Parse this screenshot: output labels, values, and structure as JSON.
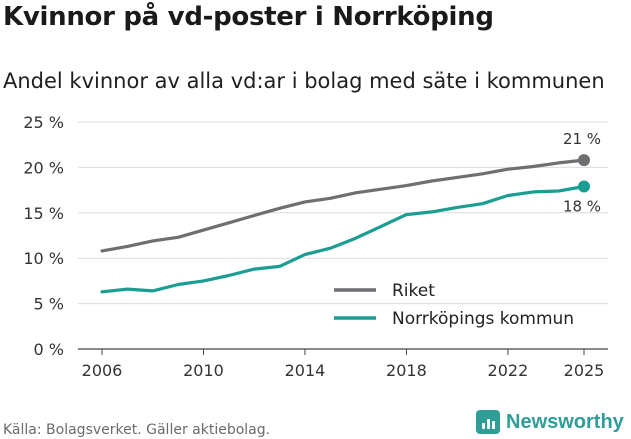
{
  "header": {
    "title": "Kvinnor på vd-poster i Norrköping",
    "subtitle": "Andel kvinnor av alla vd:ar i bolag med säte i kommunen"
  },
  "footer": {
    "source": "Källa: Bolagsverket. Gäller aktiebolag.",
    "brand": "Newsworthy"
  },
  "chart_data": {
    "type": "line",
    "title": "Kvinnor på vd-poster i Norrköping",
    "subtitle": "Andel kvinnor av alla vd:ar i bolag med säte i kommunen",
    "xlabel": "",
    "ylabel": "",
    "x": [
      2006,
      2007,
      2008,
      2009,
      2010,
      2011,
      2012,
      2013,
      2014,
      2015,
      2016,
      2017,
      2018,
      2019,
      2020,
      2021,
      2022,
      2023,
      2024,
      2025
    ],
    "x_ticks": [
      2006,
      2010,
      2014,
      2018,
      2022,
      2025
    ],
    "xlim": [
      2006,
      2025
    ],
    "y_ticks": [
      0,
      5,
      10,
      15,
      20,
      25
    ],
    "y_tick_labels": [
      "0 %",
      "5 %",
      "10 %",
      "15 %",
      "20 %",
      "25 %"
    ],
    "ylim": [
      0,
      25
    ],
    "grid": true,
    "legend_position": "bottom-right",
    "series": [
      {
        "name": "Riket",
        "color": "#6e6e73",
        "end_label": "21 %",
        "values": [
          10.8,
          11.3,
          11.9,
          12.3,
          13.1,
          13.9,
          14.7,
          15.5,
          16.2,
          16.6,
          17.2,
          17.6,
          18.0,
          18.5,
          18.9,
          19.3,
          19.8,
          20.1,
          20.5,
          20.8
        ]
      },
      {
        "name": "Norrköpings kommun",
        "color": "#1a9e92",
        "end_label": "18 %",
        "values": [
          6.3,
          6.6,
          6.4,
          7.1,
          7.5,
          8.1,
          8.8,
          9.1,
          10.4,
          11.1,
          12.2,
          13.5,
          14.8,
          15.1,
          15.6,
          16.0,
          16.9,
          17.3,
          17.4,
          17.9
        ]
      }
    ]
  }
}
